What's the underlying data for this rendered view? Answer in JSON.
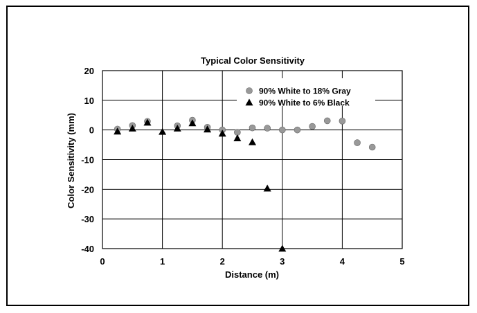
{
  "chart_data": {
    "type": "scatter",
    "title": "Typical Color Sensitivity",
    "xlabel": "Distance (m)",
    "ylabel": "Color Sensitivity (mm)",
    "xlim": [
      0,
      5
    ],
    "ylim": [
      -40,
      20
    ],
    "xticks": [
      0,
      1,
      2,
      3,
      4,
      5
    ],
    "yticks": [
      20,
      10,
      0,
      -10,
      -20,
      -30,
      -40
    ],
    "grid": true,
    "legend_position": "top-right",
    "series": [
      {
        "name": "90% White to 18% Gray",
        "marker": "circle",
        "color": "#999999",
        "x": [
          0.25,
          0.5,
          0.75,
          1.25,
          1.5,
          1.75,
          2.0,
          2.25,
          2.5,
          2.75,
          3.0,
          3.25,
          3.5,
          3.75,
          4.0,
          4.25,
          4.5
        ],
        "y": [
          0.3,
          1.5,
          2.9,
          1.4,
          3.3,
          0.9,
          0.0,
          -0.8,
          0.7,
          0.6,
          0.0,
          0.0,
          1.2,
          3.1,
          3.0,
          -4.3,
          -5.8
        ]
      },
      {
        "name": "90% White to 6% Black",
        "marker": "triangle",
        "color": "#000000",
        "x": [
          0.25,
          0.5,
          0.75,
          1.0,
          1.25,
          1.5,
          1.75,
          2.0,
          2.25,
          2.5,
          2.75,
          3.0
        ],
        "y": [
          -0.5,
          0.5,
          2.5,
          -0.6,
          0.5,
          2.3,
          0.2,
          -1.2,
          -2.8,
          -4.1,
          -19.7,
          -40.0
        ]
      }
    ]
  }
}
